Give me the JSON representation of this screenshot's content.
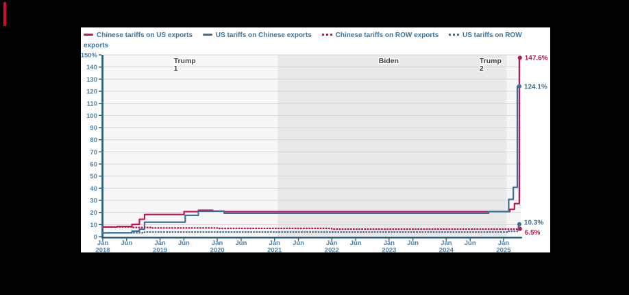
{
  "page": {
    "background": "#000000",
    "logo_mark_color": "#d10b2f"
  },
  "colors": {
    "red_line": "#c11452",
    "blue_line": "#3d6f98",
    "axis": "#2c5d7f",
    "gridline": "#cdd9e2",
    "tick_text": "#4d82aa",
    "legend_text": "#3876a8",
    "era_text": "#3e3e42",
    "biden_band": "#e9e9e9",
    "plot_background": "#f7f7f7",
    "card_background": "#ffffff"
  },
  "legend": {
    "items": [
      {
        "label": "Chinese tariffs on US exports",
        "color": "#c11452",
        "marker": "solid"
      },
      {
        "label": "US tariffs on Chinese exports",
        "color": "#3d6f98",
        "marker": "solid"
      },
      {
        "label": "Chinese tariffs on ROW exports",
        "color": "#c11452",
        "marker": "dotted"
      },
      {
        "label": "US tariffs on ROW exports",
        "color": "#3d6f98",
        "marker": "dotted"
      }
    ]
  },
  "chart_data": {
    "type": "line",
    "subtype": "step",
    "title": "",
    "xlabel": "",
    "ylabel": "",
    "x_range_years": [
      2018.0,
      2025.3
    ],
    "ylim": [
      0,
      150
    ],
    "y_tick_step": 10,
    "y_top_tick_label": "150%",
    "grid": true,
    "legend_position": "top",
    "x_ticks": [
      {
        "t": 2018.0,
        "line1": "Jan",
        "line2": "2018"
      },
      {
        "t": 2018.417,
        "line1": "Jun",
        "line2": ""
      },
      {
        "t": 2019.0,
        "line1": "Jan",
        "line2": "2019"
      },
      {
        "t": 2019.417,
        "line1": "Jun",
        "line2": ""
      },
      {
        "t": 2020.0,
        "line1": "Jan",
        "line2": "2020"
      },
      {
        "t": 2020.417,
        "line1": "Jun",
        "line2": ""
      },
      {
        "t": 2021.0,
        "line1": "Jan",
        "line2": "2021"
      },
      {
        "t": 2021.417,
        "line1": "Jun",
        "line2": ""
      },
      {
        "t": 2022.0,
        "line1": "Jan",
        "line2": "2022"
      },
      {
        "t": 2022.417,
        "line1": "Jun",
        "line2": ""
      },
      {
        "t": 2023.0,
        "line1": "Jan",
        "line2": "2023"
      },
      {
        "t": 2023.417,
        "line1": "Jun",
        "line2": ""
      },
      {
        "t": 2024.0,
        "line1": "Jan",
        "line2": "2024"
      },
      {
        "t": 2024.417,
        "line1": "Jun",
        "line2": ""
      },
      {
        "t": 2025.0,
        "line1": "Jan",
        "line2": "2025"
      }
    ],
    "eras": [
      {
        "name": "trump-1",
        "label_lines": [
          "Trump",
          "1"
        ],
        "start_t": 2018.0,
        "end_t": 2021.053,
        "shade": "#f7f7f7",
        "label_t": 2019.24
      },
      {
        "name": "biden",
        "label_lines": [
          "Biden"
        ],
        "start_t": 2021.053,
        "end_t": 2025.053,
        "shade": "#e9e9e9",
        "label_t": 2022.82
      },
      {
        "name": "trump-2",
        "label_lines": [
          "Trump",
          "2"
        ],
        "start_t": 2025.053,
        "end_t": 2025.3,
        "shade": "#f7f7f7",
        "label_t": 2024.58
      }
    ],
    "series": [
      {
        "name": "Chinese tariffs on US exports",
        "color": "#c11452",
        "style": "solid",
        "end_label": "147.6%",
        "end_label_dy": 0,
        "end_t": 2025.285,
        "points": [
          [
            2018.0,
            8.0
          ],
          [
            2018.25,
            8.4
          ],
          [
            2018.51,
            10.1
          ],
          [
            2018.64,
            14.4
          ],
          [
            2018.73,
            18.3
          ],
          [
            2019.42,
            20.7
          ],
          [
            2019.67,
            21.8
          ],
          [
            2019.92,
            21.1
          ],
          [
            2020.12,
            20.7
          ],
          [
            2025.11,
            22.6
          ],
          [
            2025.19,
            27.3
          ],
          [
            2025.275,
            147.6
          ]
        ]
      },
      {
        "name": "US tariffs on Chinese exports",
        "color": "#3d6f98",
        "style": "solid",
        "end_label": "124.1%",
        "end_label_dy": 0,
        "end_t": 2025.275,
        "points": [
          [
            2018.0,
            3.1
          ],
          [
            2018.1,
            3.2
          ],
          [
            2018.51,
            4.6
          ],
          [
            2018.64,
            6.2
          ],
          [
            2018.73,
            12.0
          ],
          [
            2019.44,
            17.6
          ],
          [
            2019.67,
            21.0
          ],
          [
            2020.12,
            19.3
          ],
          [
            2024.74,
            20.8
          ],
          [
            2025.09,
            30.8
          ],
          [
            2025.17,
            40.8
          ],
          [
            2025.24,
            124.1
          ]
        ]
      },
      {
        "name": "Chinese tariffs on ROW exports",
        "color": "#c11452",
        "style": "dotted",
        "end_label": "6.5%",
        "end_label_dy": 5,
        "end_t": 2025.285,
        "points": [
          [
            2018.0,
            8.0
          ],
          [
            2018.51,
            7.6
          ],
          [
            2018.86,
            7.2
          ],
          [
            2020.0,
            6.8
          ],
          [
            2022.0,
            6.3
          ],
          [
            2025.27,
            6.5
          ]
        ]
      },
      {
        "name": "US tariffs on ROW exports",
        "color": "#3d6f98",
        "style": "dotted",
        "end_label": "10.3%",
        "end_label_dy": -3,
        "end_t": 2025.275,
        "points": [
          [
            2018.0,
            3.2
          ],
          [
            2018.73,
            3.8
          ],
          [
            2025.06,
            4.5
          ],
          [
            2025.26,
            10.3
          ]
        ]
      }
    ]
  }
}
